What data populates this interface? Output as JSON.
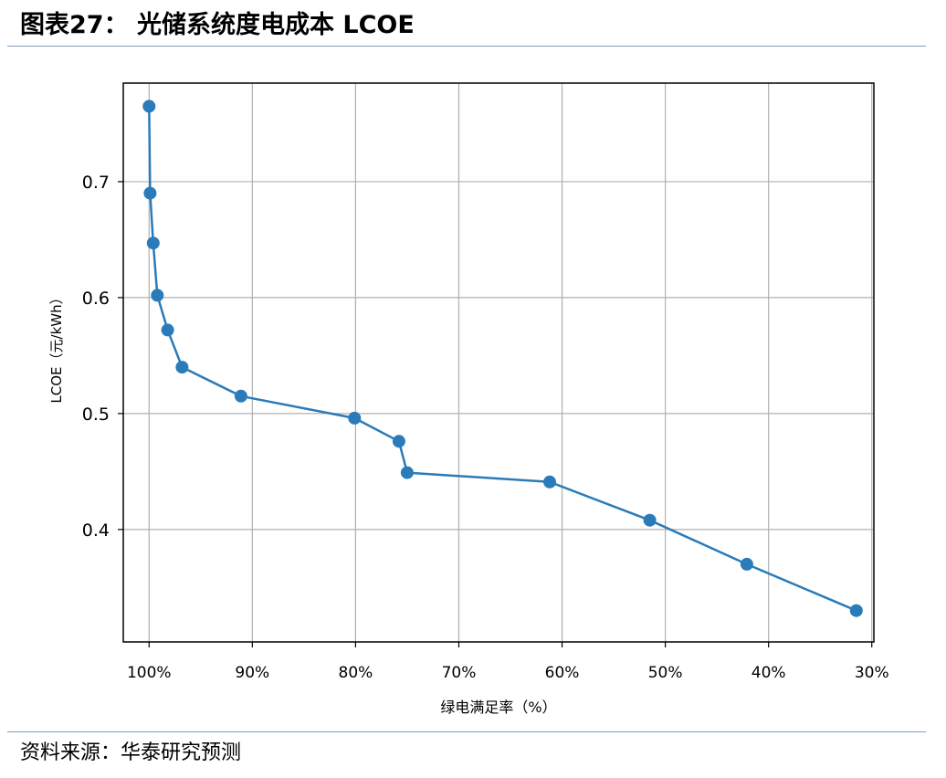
{
  "header": {
    "title": "图表27：  光储系统度电成本 LCOE"
  },
  "footer": {
    "source": "资料来源：华泰研究预测"
  },
  "chart_data": {
    "type": "line",
    "title": "",
    "xlabel": "绿电满足率（%）",
    "ylabel": "LCOE（元/kWh）",
    "x_axis_reversed": true,
    "xlim": [
      102.5,
      29.8
    ],
    "ylim": [
      0.303,
      0.785
    ],
    "grid": true,
    "x_ticks": [
      100,
      90,
      80,
      70,
      60,
      50,
      40,
      30
    ],
    "x_tick_labels": [
      "100%",
      "90%",
      "80%",
      "70%",
      "60%",
      "50%",
      "40%",
      "30%"
    ],
    "y_ticks": [
      0.4,
      0.5,
      0.6,
      0.7
    ],
    "y_tick_labels": [
      "0.4",
      "0.5",
      "0.6",
      "0.7"
    ],
    "colors": {
      "series": "#2a7bb9",
      "grid": "#b0b0b0",
      "axes": "#000000",
      "rule": "#7f9fbf"
    },
    "series": [
      {
        "marker": "circle",
        "x": [
          100.0,
          99.9,
          99.6,
          99.2,
          98.2,
          96.8,
          91.1,
          80.1,
          75.8,
          75.0,
          61.2,
          51.5,
          42.1,
          31.5
        ],
        "y": [
          0.765,
          0.69,
          0.647,
          0.602,
          0.572,
          0.54,
          0.515,
          0.496,
          0.476,
          0.449,
          0.441,
          0.408,
          0.37,
          0.33
        ]
      }
    ]
  }
}
